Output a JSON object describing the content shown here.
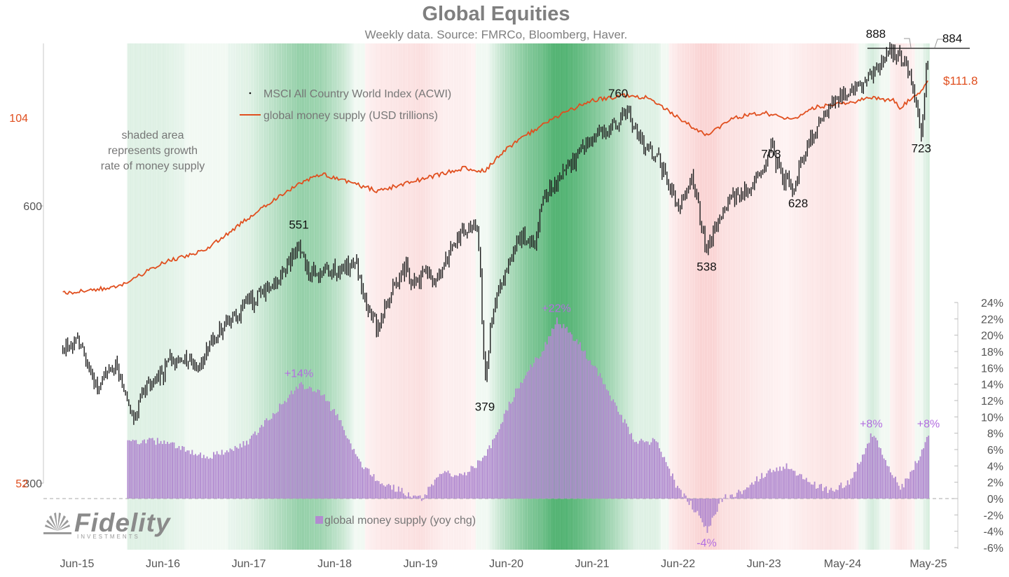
{
  "title": "Global Equities",
  "subtitle": "Weekly data.  Source: FMRCo, Bloomberg, Haver.",
  "shade_note": [
    "shaded area",
    "represents growth",
    "rate of money supply"
  ],
  "logo": {
    "text": "Fidelity",
    "subtext": "INVESTMENTS"
  },
  "colors": {
    "acwi": "#1a1a1a",
    "money": "#e04f1f",
    "bars": "#b28bd0",
    "pct_label": "#b36ee0",
    "left_axis_red": "#e04f1f",
    "axis_text": "#555555"
  },
  "chart_data": {
    "type": "line",
    "x_ticks": [
      "Jun-15",
      "Jun-16",
      "Jun-17",
      "Jun-18",
      "Jun-19",
      "Jun-20",
      "Jun-21",
      "Jun-22",
      "Jun-23",
      "May-24",
      "May-25"
    ],
    "left_axis_acwi": {
      "ticks": [
        300,
        600
      ],
      "scale": "log"
    },
    "left_axis_money": {
      "ticks": [
        52,
        104
      ],
      "scale": "log"
    },
    "right_axis": {
      "ticks": [
        "24%",
        "22%",
        "20%",
        "18%",
        "16%",
        "14%",
        "12%",
        "10%",
        "8%",
        "6%",
        "4%",
        "2%",
        "0%",
        "-2%",
        "-4%",
        "-6%"
      ],
      "range": [
        -6,
        24
      ]
    },
    "series": [
      {
        "name": "MSCI All Country World Index (ACWI)",
        "kind": "line",
        "points": [
          [
            "Apr-15",
            421
          ],
          [
            "Jun-15",
            430
          ],
          [
            "Aug-15",
            398
          ],
          [
            "Sep-15",
            380
          ],
          [
            "Nov-15",
            405
          ],
          [
            "Dec-15",
            395
          ],
          [
            "Feb-16",
            345
          ],
          [
            "Mar-16",
            378
          ],
          [
            "Jun-16",
            392
          ],
          [
            "Jul-16",
            410
          ],
          [
            "Oct-16",
            405
          ],
          [
            "Nov-16",
            398
          ],
          [
            "Jan-17",
            430
          ],
          [
            "Mar-17",
            450
          ],
          [
            "Jun-17",
            470
          ],
          [
            "Sep-17",
            490
          ],
          [
            "Nov-17",
            505
          ],
          [
            "Jan-18",
            551
          ],
          [
            "Feb-18",
            512
          ],
          [
            "Apr-18",
            508
          ],
          [
            "Jun-18",
            510
          ],
          [
            "Sep-18",
            520
          ],
          [
            "Oct-18",
            480
          ],
          [
            "Dec-18",
            440
          ],
          [
            "Jan-19",
            470
          ],
          [
            "Apr-19",
            515
          ],
          [
            "May-19",
            490
          ],
          [
            "Jul-19",
            515
          ],
          [
            "Aug-19",
            495
          ],
          [
            "Dec-19",
            565
          ],
          [
            "Feb-20",
            575
          ],
          [
            "Mar-20",
            379
          ],
          [
            "Apr-20",
            455
          ],
          [
            "Jun-20",
            512
          ],
          [
            "Aug-20",
            555
          ],
          [
            "Oct-20",
            550
          ],
          [
            "Nov-20",
            605
          ],
          [
            "Jan-21",
            640
          ],
          [
            "Mar-21",
            665
          ],
          [
            "Jun-21",
            712
          ],
          [
            "Sep-21",
            730
          ],
          [
            "Nov-21",
            760
          ],
          [
            "Jan-22",
            700
          ],
          [
            "Mar-22",
            680
          ],
          [
            "Jun-22",
            600
          ],
          [
            "Aug-22",
            640
          ],
          [
            "Oct-22",
            538
          ],
          [
            "Jan-23",
            610
          ],
          [
            "Mar-23",
            620
          ],
          [
            "Jun-23",
            660
          ],
          [
            "Jul-23",
            703
          ],
          [
            "Aug-23",
            655
          ],
          [
            "Oct-23",
            628
          ],
          [
            "Dec-23",
            695
          ],
          [
            "Mar-24",
            770
          ],
          [
            "Jun-24",
            800
          ],
          [
            "Aug-24",
            815
          ],
          [
            "Oct-24",
            845
          ],
          [
            "Dec-24",
            888
          ],
          [
            "Jan-25",
            870
          ],
          [
            "Feb-25",
            860
          ],
          [
            "Apr-25",
            723
          ],
          [
            "May-25",
            884
          ]
        ],
        "annotations": [
          {
            "x": "Jan-18",
            "label": "551"
          },
          {
            "x": "Mar-20",
            "label": "379"
          },
          {
            "x": "Nov-21",
            "label": "760"
          },
          {
            "x": "Oct-22",
            "label": "538"
          },
          {
            "x": "Jul-23",
            "label": "703"
          },
          {
            "x": "Oct-23",
            "label": "628"
          },
          {
            "x": "Dec-24",
            "label": "888"
          },
          {
            "x": "Apr-25",
            "label": "723"
          },
          {
            "x": "May-25",
            "label": "884"
          }
        ]
      },
      {
        "name": "global money supply (USD trillions)",
        "kind": "line",
        "points": [
          [
            "Apr-15",
            74.5
          ],
          [
            "Dec-15",
            75.5
          ],
          [
            "Jun-16",
            79
          ],
          [
            "Dec-16",
            81
          ],
          [
            "Jun-17",
            86
          ],
          [
            "Dec-17",
            91
          ],
          [
            "Apr-18",
            93.5
          ],
          [
            "Dec-18",
            90.5
          ],
          [
            "Jun-19",
            92.5
          ],
          [
            "Dec-19",
            94.5
          ],
          [
            "Mar-20",
            94
          ],
          [
            "Jun-20",
            98
          ],
          [
            "Dec-20",
            103.5
          ],
          [
            "Jun-21",
            107.5
          ],
          [
            "Nov-21",
            108.5
          ],
          [
            "Feb-22",
            108
          ],
          [
            "Jun-22",
            104
          ],
          [
            "Oct-22",
            100.5
          ],
          [
            "Feb-23",
            104
          ],
          [
            "Jun-23",
            105
          ],
          [
            "Oct-23",
            103.5
          ],
          [
            "Jan-24",
            106
          ],
          [
            "Jun-24",
            107
          ],
          [
            "Sep-24",
            108
          ],
          [
            "Dec-24",
            107.5
          ],
          [
            "Jan-25",
            106
          ],
          [
            "Apr-25",
            109.5
          ],
          [
            "May-25",
            111.8
          ]
        ],
        "end_label": "$111.8"
      },
      {
        "name": "global money supply (yoy chg)",
        "kind": "bar",
        "points": [
          [
            "Jan-16",
            7
          ],
          [
            "Jun-16",
            7
          ],
          [
            "Dec-16",
            5
          ],
          [
            "Jun-17",
            7
          ],
          [
            "Sep-17",
            10
          ],
          [
            "Jan-18",
            14
          ],
          [
            "Apr-18",
            13
          ],
          [
            "Jul-18",
            9
          ],
          [
            "Sep-18",
            5
          ],
          [
            "Dec-18",
            2
          ],
          [
            "Jun-19",
            0
          ],
          [
            "Sep-19",
            3
          ],
          [
            "Dec-19",
            3
          ],
          [
            "Mar-20",
            5
          ],
          [
            "Jun-20",
            11
          ],
          [
            "Sep-20",
            16
          ],
          [
            "Nov-20",
            18
          ],
          [
            "Jan-21",
            22
          ],
          [
            "Apr-21",
            19
          ],
          [
            "Jul-21",
            15
          ],
          [
            "Oct-21",
            10
          ],
          [
            "Dec-21",
            7
          ],
          [
            "Mar-22",
            7
          ],
          [
            "Jun-22",
            1
          ],
          [
            "Aug-22",
            -1
          ],
          [
            "Oct-22",
            -4
          ],
          [
            "Dec-22",
            0
          ],
          [
            "Mar-23",
            1
          ],
          [
            "Jun-23",
            3
          ],
          [
            "Sep-23",
            4
          ],
          [
            "Dec-23",
            2
          ],
          [
            "Mar-24",
            1
          ],
          [
            "Jun-24",
            2
          ],
          [
            "Aug-24",
            6
          ],
          [
            "Sep-24",
            8
          ],
          [
            "Dec-24",
            3
          ],
          [
            "Jan-25",
            1
          ],
          [
            "Mar-25",
            4
          ],
          [
            "May-25",
            8
          ]
        ],
        "annotations": [
          {
            "x": "Jan-18",
            "label": "+14%"
          },
          {
            "x": "Jan-21",
            "label": "+22%"
          },
          {
            "x": "Oct-22",
            "label": "-4%"
          },
          {
            "x": "Sep-24",
            "label": "+8%"
          },
          {
            "x": "May-25",
            "label": "+8%"
          }
        ]
      }
    ],
    "legend": "top-left",
    "grid": false,
    "background_shading": "growth rate of money supply (green = high, red = low)"
  }
}
